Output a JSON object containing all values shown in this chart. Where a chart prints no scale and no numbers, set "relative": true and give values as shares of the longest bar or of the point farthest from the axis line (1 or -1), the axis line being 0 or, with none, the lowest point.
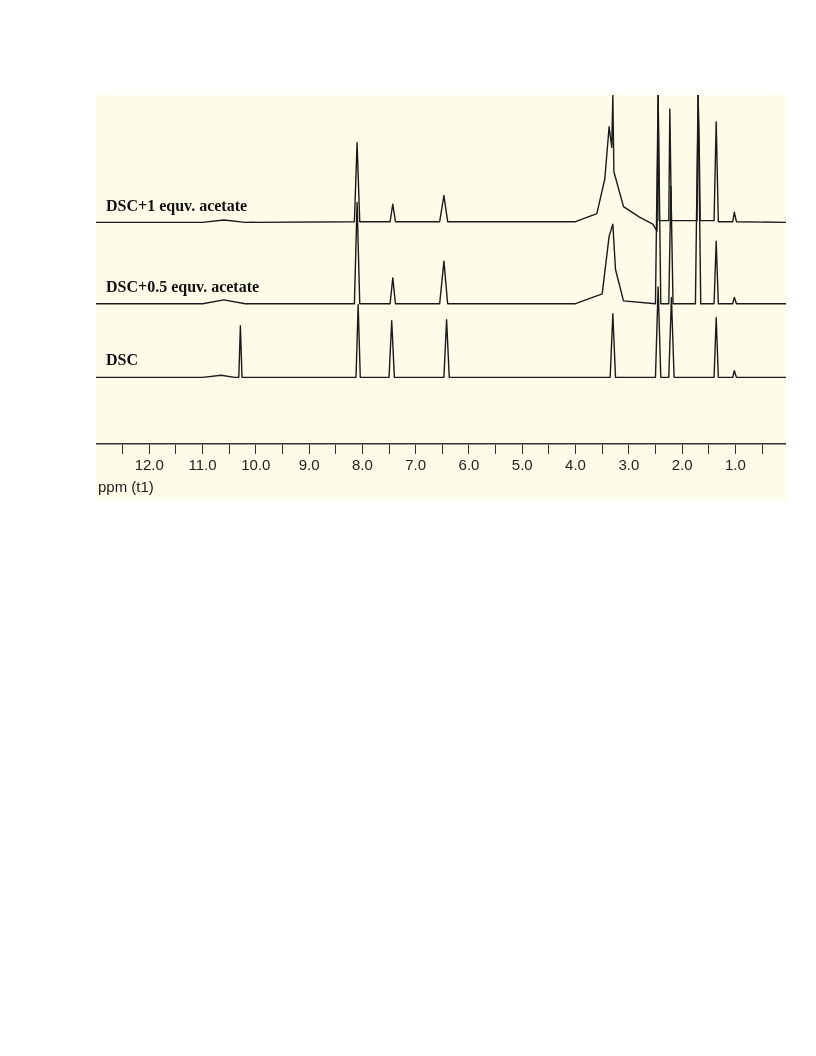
{
  "chart_data": {
    "type": "line",
    "relative": true,
    "xlabel": "ppm (t1)",
    "xlim": [
      13.0,
      0.05
    ],
    "xticks": [
      {
        "value": 12.5,
        "label": null
      },
      {
        "value": 12,
        "label": "12.0"
      },
      {
        "value": 11.5,
        "label": null
      },
      {
        "value": 11,
        "label": "11.0"
      },
      {
        "value": 10.5,
        "label": null
      },
      {
        "value": 10,
        "label": "10.0"
      },
      {
        "value": 9.5,
        "label": null
      },
      {
        "value": 9,
        "label": "9.0"
      },
      {
        "value": 8.5,
        "label": null
      },
      {
        "value": 8,
        "label": "8.0"
      },
      {
        "value": 7.5,
        "label": null
      },
      {
        "value": 7,
        "label": "7.0"
      },
      {
        "value": 6.5,
        "label": null
      },
      {
        "value": 6,
        "label": "6.0"
      },
      {
        "value": 5.5,
        "label": null
      },
      {
        "value": 5,
        "label": "5.0"
      },
      {
        "value": 4.5,
        "label": null
      },
      {
        "value": 4,
        "label": "4.0"
      },
      {
        "value": 3.5,
        "label": null
      },
      {
        "value": 3,
        "label": "3.0"
      },
      {
        "value": 2.5,
        "label": null
      },
      {
        "value": 2,
        "label": "2.0"
      },
      {
        "value": 1.5,
        "label": null
      },
      {
        "value": 1,
        "label": "1.0"
      },
      {
        "value": 0.5,
        "label": null
      }
    ],
    "grid": false,
    "legend": false,
    "tick_labels": "x",
    "marker": "none",
    "line_style": "solid",
    "series": [
      {
        "name": "DSC+1 equv. acetate",
        "color": "#1a1a1a",
        "x": [
          13.0,
          11.0,
          10.6,
          10.2,
          8.15,
          8.1,
          8.05,
          7.48,
          7.43,
          7.38,
          6.55,
          6.47,
          6.4,
          4.0,
          3.6,
          3.45,
          3.37,
          3.32,
          3.3,
          3.28,
          3.1,
          2.8,
          2.55,
          2.47,
          2.45,
          2.43,
          2.3,
          2.25,
          2.23,
          2.2,
          1.75,
          1.72,
          1.7,
          1.68,
          1.66,
          1.4,
          1.36,
          1.32,
          1.05,
          1.02,
          0.98,
          0.05
        ],
        "values": [
          0.635,
          0.635,
          0.642,
          0.635,
          0.637,
          0.863,
          0.637,
          0.637,
          0.687,
          0.637,
          0.637,
          0.712,
          0.637,
          0.637,
          0.66,
          0.76,
          0.909,
          0.85,
          1,
          0.78,
          0.68,
          0.65,
          0.63,
          0.61,
          1,
          0.64,
          0.64,
          0.64,
          0.96,
          0.64,
          0.64,
          0.64,
          1,
          0.872,
          0.64,
          0.64,
          0.923,
          0.637,
          0.637,
          0.664,
          0.637,
          0.635
        ]
      },
      {
        "name": "DSC+0.5 equv. acetate",
        "color": "#1a1a1a",
        "x": [
          13.0,
          11.0,
          10.6,
          10.2,
          8.15,
          8.1,
          8.05,
          7.48,
          7.43,
          7.38,
          6.55,
          6.47,
          6.4,
          4.0,
          3.5,
          3.37,
          3.3,
          3.25,
          3.1,
          2.5,
          2.45,
          2.4,
          2.25,
          2.21,
          2.17,
          1.75,
          1.7,
          1.65,
          1.4,
          1.36,
          1.32,
          1.05,
          1.02,
          0.98,
          0.05
        ],
        "values": [
          0.402,
          0.402,
          0.413,
          0.402,
          0.402,
          0.692,
          0.402,
          0.402,
          0.476,
          0.402,
          0.402,
          0.524,
          0.402,
          0.402,
          0.43,
          0.595,
          0.63,
          0.5,
          0.41,
          0.402,
          1,
          0.402,
          0.402,
          0.738,
          0.402,
          0.402,
          1,
          0.402,
          0.402,
          0.581,
          0.402,
          0.402,
          0.42,
          0.402,
          0.402
        ]
      },
      {
        "name": "DSC",
        "color": "#1a1a1a",
        "x": [
          13.0,
          11.0,
          10.65,
          10.4,
          10.32,
          10.29,
          10.26,
          8.12,
          8.08,
          8.04,
          7.5,
          7.45,
          7.4,
          6.47,
          6.42,
          6.37,
          3.35,
          3.3,
          3.25,
          2.5,
          2.45,
          2.4,
          2.25,
          2.2,
          2.15,
          1.4,
          1.36,
          1.32,
          1.05,
          1.02,
          0.98,
          0.05
        ],
        "values": [
          0.191,
          0.191,
          0.197,
          0.191,
          0.191,
          0.339,
          0.191,
          0.191,
          0.4,
          0.191,
          0.191,
          0.353,
          0.191,
          0.191,
          0.356,
          0.191,
          0.191,
          0.373,
          0.191,
          0.191,
          0.45,
          0.191,
          0.191,
          0.42,
          0.191,
          0.191,
          0.362,
          0.191,
          0.191,
          0.21,
          0.191,
          0.191
        ]
      }
    ]
  }
}
